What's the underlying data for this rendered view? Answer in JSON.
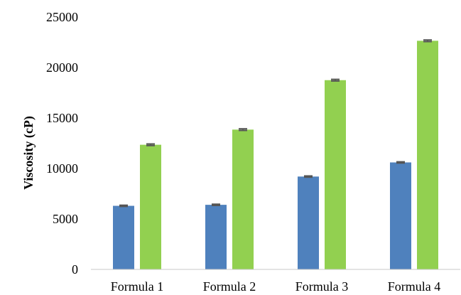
{
  "chart_data": {
    "type": "bar",
    "title": "",
    "xlabel": "",
    "ylabel": "Viscosity (cP)",
    "categories": [
      "Formula 1",
      "Formula 2",
      "Formula 3",
      "Formula 4"
    ],
    "ylim": [
      0,
      25000
    ],
    "yticks": [
      0,
      5000,
      10000,
      15000,
      20000,
      25000
    ],
    "grid": false,
    "legend": "none",
    "error_bars": true,
    "series": [
      {
        "values": [
          6300,
          6400,
          9200,
          10600
        ],
        "color": "#4f81bd",
        "errors": [
          60,
          60,
          60,
          60
        ]
      },
      {
        "values": [
          12350,
          13850,
          18750,
          22650
        ],
        "color": "#92d050",
        "errors": [
          80,
          80,
          80,
          80
        ]
      }
    ],
    "error_bar_color": "#555555",
    "axis_color": "#c8c8c8"
  }
}
